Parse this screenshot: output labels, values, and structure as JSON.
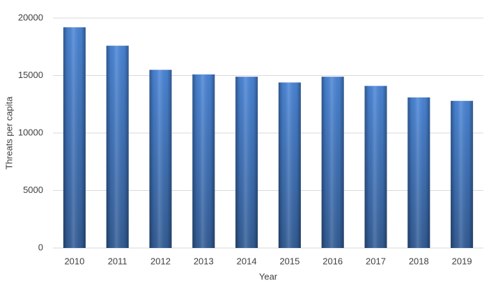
{
  "chart_data": {
    "type": "bar",
    "x_label": "Year",
    "y_label": "Threats per capita",
    "categories": [
      "2010",
      "2011",
      "2012",
      "2013",
      "2014",
      "2015",
      "2016",
      "2017",
      "2018",
      "2019"
    ],
    "values": [
      19200,
      17600,
      15500,
      15100,
      14900,
      14400,
      14900,
      14100,
      13100,
      12800
    ],
    "color": "#4a86d8",
    "ylim": [
      0,
      20000
    ],
    "yticks": [
      0,
      5000,
      10000,
      15000,
      20000
    ],
    "grid": true
  }
}
